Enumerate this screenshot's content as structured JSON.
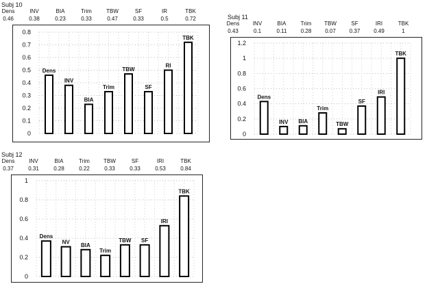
{
  "chart_data": [
    {
      "type": "bar",
      "title": "Subj 10",
      "categories": [
        "Dens",
        "INV",
        "BIA",
        "Trim",
        "TBW",
        "SF",
        "IR",
        "TBK"
      ],
      "bar_labels": [
        "Dens",
        "INV",
        "BIA",
        "Trim",
        "TBW",
        "SF",
        "RI",
        "TBK"
      ],
      "header_values": [
        "0.46",
        "0.38",
        "0.23",
        "0.33",
        "0.47",
        "0.33",
        "0.5",
        "0.72"
      ],
      "values": [
        0.46,
        0.38,
        0.23,
        0.33,
        0.47,
        0.33,
        0.5,
        0.72
      ],
      "yticks": [
        "0.8",
        "0.7",
        "0.6",
        "0.5",
        "0.4",
        "0.3",
        "0.2",
        "0.1",
        "0"
      ],
      "ylim": [
        0,
        0.8
      ],
      "grid": true,
      "xlabel": "",
      "ylabel": ""
    },
    {
      "type": "bar",
      "title": "Subj 11",
      "categories": [
        "Dens",
        "INV",
        "BIA",
        "Trim",
        "TBW",
        "SF",
        "IRI",
        "TBK"
      ],
      "bar_labels": [
        "Dens",
        "INV",
        "BIA",
        "Trim",
        "TBW",
        "SF",
        "IRI",
        "TBK"
      ],
      "header_values": [
        "0.43",
        "0.1",
        "0.11",
        "0.28",
        "0.07",
        "0.37",
        "0.49",
        "1"
      ],
      "values": [
        0.43,
        0.1,
        0.11,
        0.28,
        0.07,
        0.37,
        0.49,
        1.0
      ],
      "yticks": [
        "1.2",
        "1",
        "0.8",
        "0.6",
        "0.4",
        "0.2",
        "0"
      ],
      "ylim": [
        0,
        1.2
      ],
      "grid": true,
      "xlabel": "",
      "ylabel": ""
    },
    {
      "type": "bar",
      "title": "Subj 12",
      "categories": [
        "Dens",
        "INV",
        "BIA",
        "Trim",
        "TBW",
        "SF",
        "IRI",
        "TBK"
      ],
      "bar_labels": [
        "Dens",
        "NV",
        "BIA",
        "Trim",
        "TBW",
        "SF",
        "IRI",
        "TBK"
      ],
      "header_values": [
        "0.37",
        "0.31",
        "0.28",
        "0.22",
        "0.33",
        "0.33",
        "0.53",
        "0.84"
      ],
      "values": [
        0.37,
        0.31,
        0.28,
        0.22,
        0.33,
        0.33,
        0.53,
        0.84
      ],
      "yticks": [
        "1",
        "0.8",
        "0.6",
        "0.4",
        "0.2",
        "0"
      ],
      "ylim": [
        0,
        1.0
      ],
      "grid": true,
      "xlabel": "",
      "ylabel": ""
    }
  ]
}
